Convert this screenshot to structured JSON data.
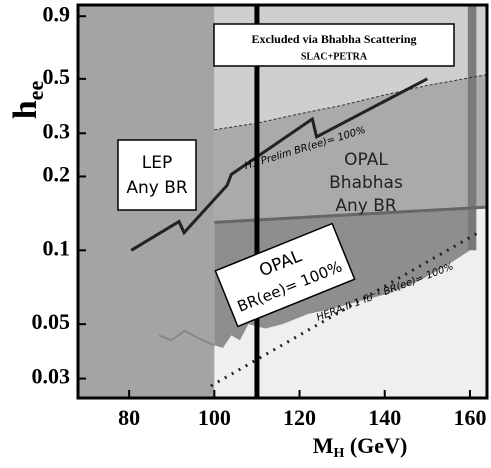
{
  "chart_data": {
    "type": "exclusion",
    "xlabel": {
      "main": "M",
      "sub": "H",
      "rest": " (GeV)"
    },
    "ylabel": {
      "main": "h",
      "sub": "ee"
    },
    "xlim": [
      68,
      164
    ],
    "ylim": [
      0.025,
      1.0
    ],
    "log_y": true,
    "xticks": [
      80,
      100,
      120,
      140,
      160
    ],
    "yticks": [
      0.03,
      0.05,
      0.1,
      0.2,
      0.3,
      0.5,
      0.9
    ],
    "background": "#efefef",
    "series": [
      {
        "name": "LEP Any BR",
        "kind": "area",
        "color": "#a4a4a4",
        "x": [
          68,
          100,
          100,
          68
        ],
        "y": [
          0.025,
          0.025,
          1.0,
          1.0
        ]
      },
      {
        "name": "Excluded via Bhabha Scattering",
        "kind": "area",
        "color": "#cfcfcf",
        "x": [
          100,
          110,
          120,
          130,
          140,
          150,
          164,
          164,
          100
        ],
        "y": [
          0.31,
          0.33,
          0.36,
          0.39,
          0.43,
          0.47,
          0.52,
          1.0,
          1.0
        ]
      },
      {
        "name": "OPAL Bhabhas Any BR",
        "kind": "area",
        "color": "#aaaaaa",
        "x": [
          100,
          110,
          120,
          130,
          140,
          150,
          164,
          164,
          100
        ],
        "y": [
          0.31,
          0.33,
          0.36,
          0.39,
          0.43,
          0.47,
          0.52,
          0.15,
          0.13
        ]
      },
      {
        "name": "OPAL BR(ee)= 100%",
        "kind": "area",
        "color": "#8e8e8e",
        "x": [
          100,
          160,
          160,
          156,
          152,
          148,
          144,
          140,
          134,
          128,
          122,
          116,
          112,
          108,
          106,
          104,
          102,
          100
        ],
        "y": [
          0.13,
          0.148,
          0.1,
          0.09,
          0.082,
          0.075,
          0.07,
          0.066,
          0.062,
          0.058,
          0.055,
          0.05,
          0.048,
          0.05,
          0.043,
          0.045,
          0.04,
          0.041
        ]
      },
      {
        "name": "LEP edge",
        "kind": "line",
        "color": "#888888",
        "width": 2,
        "x": [
          87,
          90,
          93,
          96,
          100
        ],
        "y": [
          0.045,
          0.043,
          0.047,
          0.044,
          0.041
        ]
      },
      {
        "name": "right strip",
        "kind": "area",
        "color": "#7a7a7a",
        "x": [
          159.5,
          161.5,
          161.5,
          159.5
        ],
        "y": [
          0.1,
          0.1,
          1.0,
          1.0
        ]
      },
      {
        "name": "Bhabha boundary",
        "kind": "line",
        "color": "#333333",
        "width": 1,
        "dash": "3 2",
        "x": [
          100,
          110,
          120,
          130,
          140,
          150,
          164
        ],
        "y": [
          0.31,
          0.33,
          0.36,
          0.39,
          0.43,
          0.47,
          0.52
        ]
      },
      {
        "name": "OPAL Bhabhas boundary",
        "kind": "line",
        "color": "#666666",
        "width": 3,
        "x": [
          100,
          164
        ],
        "y": [
          0.13,
          0.15
        ]
      },
      {
        "name": "H1 Prelim",
        "kind": "line",
        "color": "#222222",
        "width": 3,
        "x": [
          80.5,
          91.7,
          92.9,
          103,
          104,
          123,
          124,
          150
        ],
        "y": [
          0.1,
          0.131,
          0.118,
          0.184,
          0.204,
          0.343,
          0.29,
          0.5
        ]
      },
      {
        "name": "HERA II",
        "kind": "line",
        "color": "#222222",
        "width": 3,
        "dash": "2 6",
        "x": [
          99.2,
          162.3
        ],
        "y": [
          0.028,
          0.119
        ]
      },
      {
        "name": "boundary 110",
        "kind": "line",
        "color": "#000000",
        "width": 5,
        "x": [
          110,
          110
        ],
        "y": [
          0.025,
          1.0
        ]
      }
    ],
    "annotations": {
      "bhabha": [
        "Excluded via Bhabha Scattering",
        "SLAC+PETRA"
      ],
      "lep": [
        "LEP",
        "Any BR"
      ],
      "h1": "H1 Prelim BR(ee)= 100%",
      "opal_any": [
        "OPAL",
        "Bhabhas",
        "Any BR"
      ],
      "opal_100": [
        "OPAL",
        "BR(ee)= 100%"
      ],
      "hera": "HERA II  1 fb⁻¹ BR(ee)= 100%"
    }
  }
}
